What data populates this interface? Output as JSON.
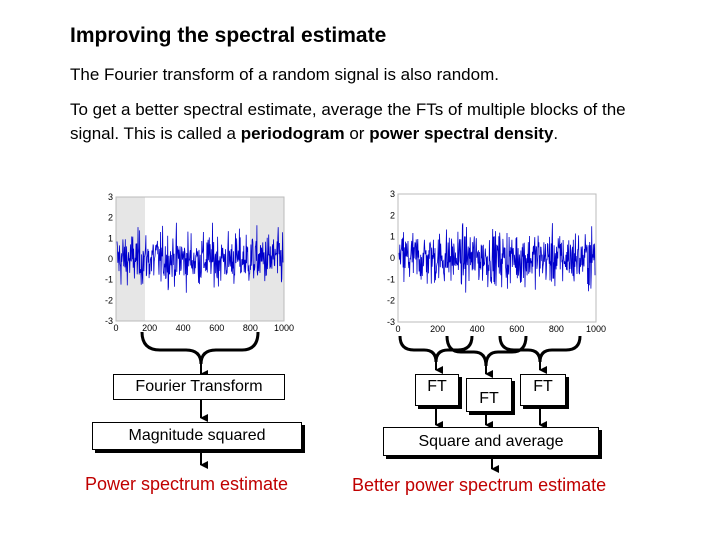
{
  "title": "Improving the spectral estimate",
  "line1": "The Fourier transform of a random signal is also random.",
  "para": {
    "p1": "To get a better spectral estimate, average the FTs of multiple blocks of the signal. This is called a ",
    "b1": "periodogram",
    "p2": " or ",
    "b2": "power spectral density",
    "p3": "."
  },
  "plot_y_ticks": [
    "3",
    "2",
    "1",
    "0",
    "-1",
    "-2",
    "-3"
  ],
  "plot_x_ticks": [
    "0",
    "200",
    "400",
    "600",
    "800",
    "1000"
  ],
  "left": {
    "box1": "Fourier Transform",
    "box2": "Magnitude squared",
    "result": "Power spectrum estimate"
  },
  "right": {
    "ft1": "FT",
    "ft2": "FT",
    "ft3": "FT",
    "box2": "Square and average",
    "result": "Better power spectrum estimate"
  },
  "colors": {
    "signal": "#0000cc",
    "result": "#c00000",
    "highlight": "#e6e6e6"
  }
}
